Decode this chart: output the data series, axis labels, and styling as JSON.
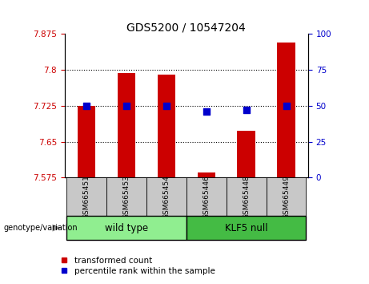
{
  "title": "GDS5200 / 10547204",
  "categories": [
    "GSM665451",
    "GSM665453",
    "GSM665454",
    "GSM665446",
    "GSM665448",
    "GSM665449"
  ],
  "red_values": [
    7.725,
    7.793,
    7.79,
    7.585,
    7.672,
    7.858
  ],
  "blue_values": [
    50,
    50,
    50,
    46,
    47,
    50
  ],
  "ylim_left": [
    7.575,
    7.875
  ],
  "ylim_right": [
    0,
    100
  ],
  "yticks_left": [
    7.575,
    7.65,
    7.725,
    7.8,
    7.875
  ],
  "yticks_right": [
    0,
    25,
    50,
    75,
    100
  ],
  "ytick_labels_left": [
    "7.575",
    "7.65",
    "7.725",
    "7.8",
    "7.875"
  ],
  "ytick_labels_right": [
    "0",
    "25",
    "50",
    "75",
    "100"
  ],
  "hlines": [
    7.65,
    7.725,
    7.8
  ],
  "wild_type_label": "wild type",
  "klf5_null_label": "KLF5 null",
  "genotype_label": "genotype/variation",
  "legend_red": "transformed count",
  "legend_blue": "percentile rank within the sample",
  "bar_color": "#cc0000",
  "dot_color": "#0000cc",
  "wild_type_color": "#90ee90",
  "klf5_null_color": "#44bb44",
  "tick_label_area_color": "#c8c8c8",
  "bar_width": 0.45,
  "dot_size": 35,
  "title_fontsize": 10,
  "tick_fontsize": 7.5,
  "cat_fontsize": 6.5,
  "geno_fontsize": 8.5,
  "legend_fontsize": 7.5
}
